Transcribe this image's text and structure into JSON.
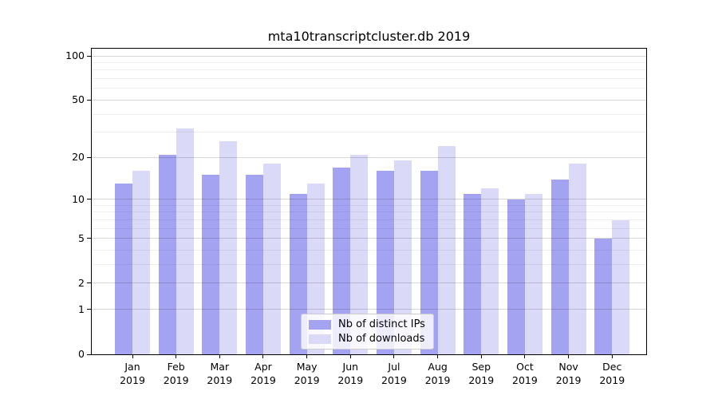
{
  "title": "mta10transcriptcluster.db 2019",
  "chart_data": {
    "type": "bar",
    "title": "mta10transcriptcluster.db 2019",
    "categories": [
      "Jan",
      "Feb",
      "Mar",
      "Apr",
      "May",
      "Jun",
      "Jul",
      "Aug",
      "Sep",
      "Oct",
      "Nov",
      "Dec"
    ],
    "year": "2019",
    "series": [
      {
        "name": "Nb of distinct IPs",
        "color": "#a3a3f2",
        "values": [
          13,
          21,
          15,
          15,
          11,
          17,
          16,
          16,
          11,
          10,
          14,
          5
        ]
      },
      {
        "name": "Nb of downloads",
        "color": "#dadaf8",
        "values": [
          16,
          32,
          26,
          18,
          13,
          21,
          19,
          24,
          12,
          11,
          18,
          7
        ]
      }
    ],
    "xlabel": "",
    "ylabel": "",
    "yscale": "log1p",
    "ylim": [
      0,
      110
    ],
    "yticks": [
      0,
      1,
      2,
      5,
      10,
      20,
      50,
      100
    ],
    "ytick_labels": [
      "0",
      "1",
      "2",
      "5",
      "10",
      "20",
      "50",
      "100"
    ],
    "yticks_minor": [
      3,
      4,
      6,
      7,
      8,
      9,
      30,
      40,
      60,
      70,
      80,
      90
    ],
    "grid": "on",
    "legend_position": "lower center"
  }
}
